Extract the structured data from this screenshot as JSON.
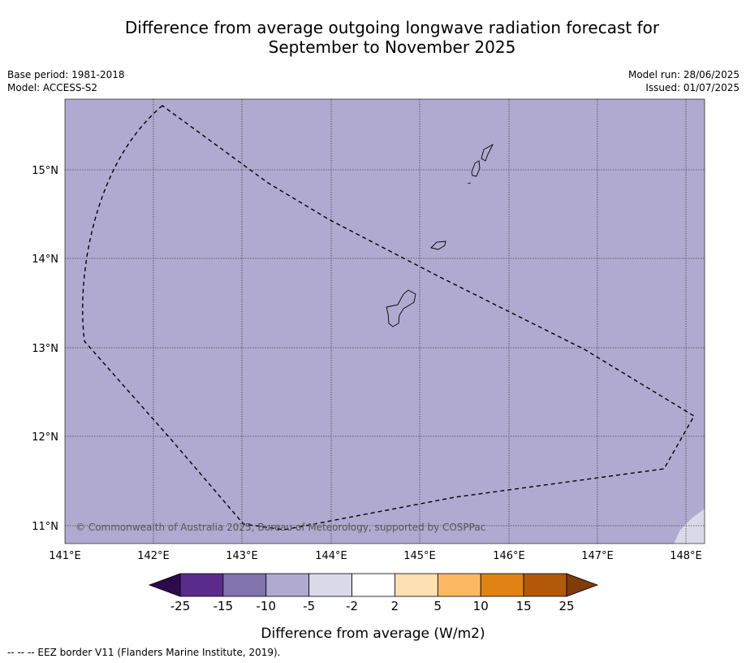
{
  "title_line1": "Difference from average outgoing longwave radiation forecast for",
  "title_line2": "September to November 2025",
  "meta": {
    "base_period": "Base period: 1981-2018",
    "model": "Model: ACCESS-S2",
    "model_run": "Model run: 28/06/2025",
    "issued": "Issued: 01/07/2025"
  },
  "map": {
    "lon_ticks": [
      "141°E",
      "142°E",
      "143°E",
      "144°E",
      "145°E",
      "146°E",
      "147°E",
      "148°E"
    ],
    "lat_ticks": [
      "15°N",
      "14°N",
      "13°N",
      "12°N",
      "11°N"
    ],
    "fill_color": "#b0aad1",
    "copyright": "© Commonwealth of Australia 2025, Bureau of Meteorology, supported by COSPPac"
  },
  "colorbar": {
    "tick_labels": [
      "-25",
      "-15",
      "-10",
      "-5",
      "-2",
      "2",
      "5",
      "10",
      "15",
      "25"
    ],
    "colors": [
      "#2d0a4e",
      "#5a2a8c",
      "#8073ae",
      "#b0aad1",
      "#dad9ea",
      "#ffffff",
      "#fee0b3",
      "#fdb863",
      "#e08214",
      "#b35806",
      "#7f3b08"
    ],
    "label": "Difference from average (W/m2)"
  },
  "footer": "--  --  -- EEZ border V11 (Flanders Marine Institute, 2019)."
}
